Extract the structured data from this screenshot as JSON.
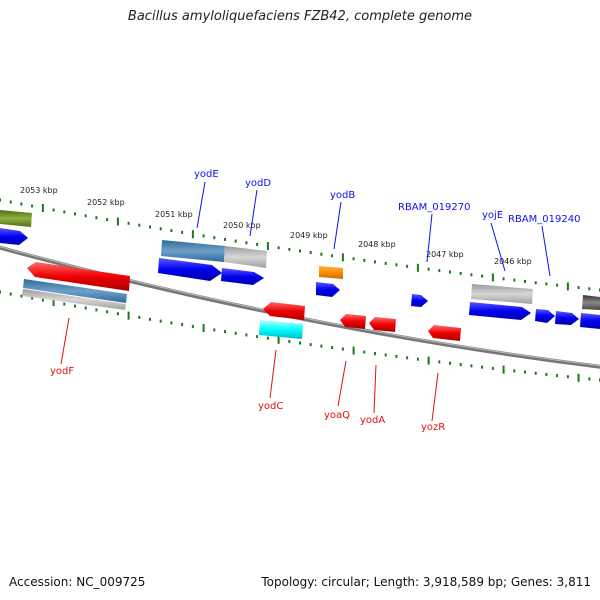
{
  "title": "Bacillus amyloliquefaciens FZB42, complete genome",
  "footer": {
    "accession": "Accession: NC_009725",
    "summary": "Topology: circular; Length: 3,918,589 bp; Genes: 3,811"
  },
  "colors": {
    "forward_gene": "#0000ee",
    "reverse_gene": "#ee0000",
    "label_forward": "#1010ee",
    "label_reverse": "#e01010",
    "tick": "#1a7a1a",
    "backbone": "#777777"
  },
  "scale_labels": [
    "2053 kbp",
    "2052 kbp",
    "2051 kbp",
    "2050 kbp",
    "2049 kbp",
    "2048 kbp",
    "2047 kbp",
    "2046 kbp"
  ],
  "forward_labels": [
    "yodE",
    "yodD",
    "yodB",
    "RBAM_019270",
    "yojE",
    "RBAM_019240"
  ],
  "reverse_labels": [
    "yodF",
    "yodC",
    "yoaQ",
    "yodA",
    "yozR"
  ]
}
